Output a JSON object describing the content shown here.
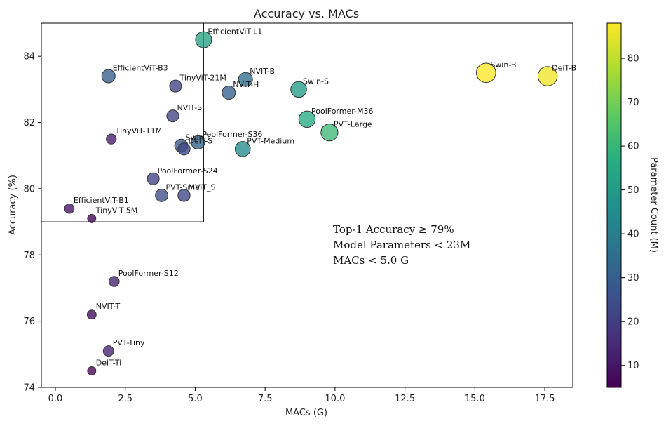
{
  "chart_data": {
    "type": "scatter",
    "title": "Accuracy vs. MACs",
    "xlabel": "MACs (G)",
    "ylabel": "Accuracy (%)",
    "xlim": [
      -0.5,
      18.5
    ],
    "ylim": [
      74,
      85
    ],
    "xticks": [
      0,
      2.5,
      5,
      7.5,
      10,
      12.5,
      15,
      17.5
    ],
    "xtick_labels": [
      "0.0",
      "2.5",
      "5.0",
      "7.5",
      "10.0",
      "12.5",
      "15.0",
      "17.5"
    ],
    "yticks": [
      74,
      76,
      78,
      80,
      82,
      84
    ],
    "ytick_labels": [
      "74",
      "76",
      "78",
      "80",
      "82",
      "84"
    ],
    "grid": false,
    "colorbar": {
      "label": "Parameter Count (M)",
      "range": [
        5,
        88
      ],
      "ticks": [
        10,
        20,
        30,
        40,
        50,
        60,
        70,
        80
      ],
      "tick_labels": [
        "10",
        "20",
        "30",
        "40",
        "50",
        "60",
        "70",
        "80"
      ],
      "colormap": "viridis"
    },
    "highlight_region": {
      "x": [
        -0.5,
        5.3
      ],
      "y": [
        79,
        85
      ]
    },
    "annotation": [
      "Top-1 Accuracy ≥ 79%",
      "Model Parameters < 23M",
      "MACs < 5.0 G"
    ],
    "points": [
      {
        "name": "EfficientViT-L1",
        "macs": 5.3,
        "acc": 84.5,
        "params": 53
      },
      {
        "name": "EfficientViT-B3",
        "macs": 1.9,
        "acc": 83.4,
        "params": 30
      },
      {
        "name": "TinyViT-21M",
        "macs": 4.3,
        "acc": 83.1,
        "params": 21
      },
      {
        "name": "NVIT-B",
        "macs": 6.8,
        "acc": 83.3,
        "params": 35
      },
      {
        "name": "NVIT-H",
        "macs": 6.2,
        "acc": 82.9,
        "params": 30
      },
      {
        "name": "Swin-S",
        "macs": 8.7,
        "acc": 83.0,
        "params": 50
      },
      {
        "name": "Swin-B",
        "macs": 15.4,
        "acc": 83.5,
        "params": 88
      },
      {
        "name": "DeiT-B",
        "macs": 17.6,
        "acc": 83.4,
        "params": 86
      },
      {
        "name": "NVIT-S",
        "macs": 4.2,
        "acc": 82.2,
        "params": 21
      },
      {
        "name": "PoolFormer-M36",
        "macs": 9.0,
        "acc": 82.1,
        "params": 56
      },
      {
        "name": "PVT-Large",
        "macs": 9.8,
        "acc": 81.7,
        "params": 61
      },
      {
        "name": "TinyViT-11M",
        "macs": 2.0,
        "acc": 81.5,
        "params": 11
      },
      {
        "name": "PoolFormer-S36",
        "macs": 5.1,
        "acc": 81.4,
        "params": 31
      },
      {
        "name": "Swin-T",
        "macs": 4.5,
        "acc": 81.3,
        "params": 28
      },
      {
        "name": "DeiT-S",
        "macs": 4.6,
        "acc": 81.2,
        "params": 22
      },
      {
        "name": "PVT-Medium",
        "macs": 6.7,
        "acc": 81.2,
        "params": 44
      },
      {
        "name": "PoolFormer-S24",
        "macs": 3.5,
        "acc": 80.3,
        "params": 21
      },
      {
        "name": "PVT-Small",
        "macs": 3.8,
        "acc": 79.8,
        "params": 24
      },
      {
        "name": "MViT_S",
        "macs": 4.6,
        "acc": 79.8,
        "params": 22
      },
      {
        "name": "EfficientViT-B1",
        "macs": 0.5,
        "acc": 79.4,
        "params": 9
      },
      {
        "name": "TinyViT-5M",
        "macs": 1.3,
        "acc": 79.1,
        "params": 5
      },
      {
        "name": "PoolFormer-S12",
        "macs": 2.1,
        "acc": 77.2,
        "params": 12
      },
      {
        "name": "NVIT-T",
        "macs": 1.3,
        "acc": 76.2,
        "params": 7
      },
      {
        "name": "PVT-Tiny",
        "macs": 1.9,
        "acc": 75.1,
        "params": 13
      },
      {
        "name": "DeiT-Ti",
        "macs": 1.3,
        "acc": 74.5,
        "params": 5
      }
    ]
  }
}
